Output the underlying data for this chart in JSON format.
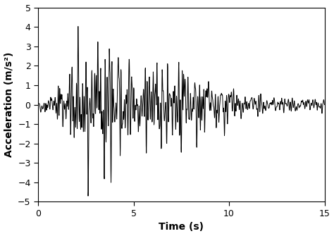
{
  "title": "",
  "xlabel": "Time (s)",
  "ylabel": "Acceleration (m/s²)",
  "xlim": [
    0,
    15
  ],
  "ylim": [
    -5,
    5
  ],
  "xticks": [
    0,
    5,
    10,
    15
  ],
  "yticks": [
    -5,
    -4,
    -3,
    -2,
    -1,
    0,
    1,
    2,
    3,
    4,
    5
  ],
  "line_color": "#000000",
  "line_width": 0.7,
  "background_color": "#ffffff",
  "figsize": [
    4.74,
    3.35
  ],
  "dpi": 100,
  "seed": 42,
  "dt": 0.01
}
